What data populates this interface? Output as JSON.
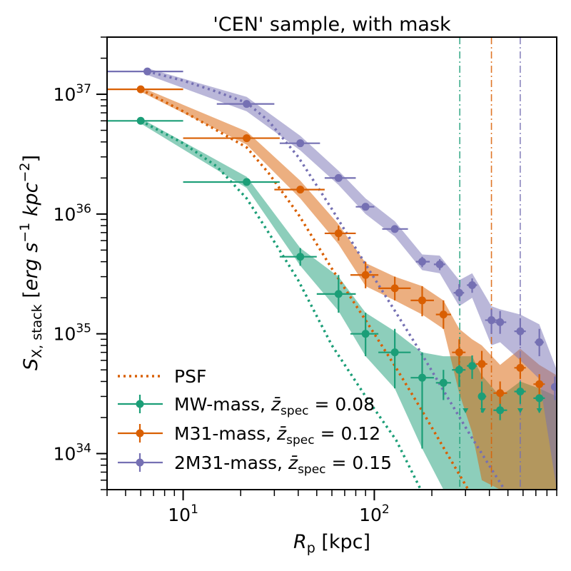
{
  "chart_data": {
    "type": "scatter",
    "title": "'CEN' sample, with mask",
    "xlabel": {
      "symbol": "R",
      "sub": "p",
      "unit": " [kpc]"
    },
    "ylabel": {
      "symbol": "S",
      "sub": "X, stack",
      "unit_open": " [",
      "unit": "erg s",
      "exp1": "−1",
      "unit2": " kpc",
      "exp2": "−2",
      "unit_close": "]"
    },
    "xscale": "log",
    "yscale": "log",
    "xlim": [
      4,
      900
    ],
    "ylim": [
      5e+33,
      3e+37
    ],
    "x_ticks": [
      {
        "value": 10,
        "base": "10",
        "exp": "1"
      },
      {
        "value": 100,
        "base": "10",
        "exp": "2"
      }
    ],
    "y_ticks": [
      {
        "value": 1e+34,
        "base": "10",
        "exp": "34"
      },
      {
        "value": 1e+35,
        "base": "10",
        "exp": "35"
      },
      {
        "value": 1e+36,
        "base": "10",
        "exp": "36"
      },
      {
        "value": 1e+37,
        "base": "10",
        "exp": "37"
      }
    ],
    "legend_position": "lower-left",
    "psf_label": "PSF",
    "series": [
      {
        "name": "MW-mass",
        "zlabel": "0.08",
        "color": "#1b9e77",
        "vline_x": 280,
        "points": [
          {
            "x": 6.0,
            "y": 6e+36,
            "xlo": 4.0,
            "xhi": 10.0
          },
          {
            "x": 21.5,
            "y": 1.85e+36,
            "xlo": 10.0,
            "xhi": 32.0
          },
          {
            "x": 41.0,
            "y": 4.4e+35,
            "xlo": 32.0,
            "xhi": 50.0,
            "ylo": 3.7e+35,
            "yhi": 5.2e+35
          },
          {
            "x": 65.0,
            "y": 2.15e+35,
            "xlo": 50.0,
            "xhi": 80.0,
            "ylo": 1.5e+35,
            "yhi": 3.1e+35
          },
          {
            "x": 90.0,
            "y": 1e+35,
            "xlo": 75.0,
            "xhi": 105.0,
            "ylo": 6.5e+34,
            "yhi": 1.5e+35
          },
          {
            "x": 128.0,
            "y": 7e+34,
            "xlo": 105.0,
            "xhi": 155.0,
            "ylo": 3.5e+34,
            "yhi": 1.1e+35
          },
          {
            "x": 178.0,
            "y": 4.3e+34,
            "xlo": 155.0,
            "xhi": 205.0,
            "ylo": 1.1e+34,
            "yhi": 7e+34
          },
          {
            "x": 230.0,
            "y": 3.9e+34,
            "xlo": 210.0,
            "xhi": 252.0,
            "ylo": 2.8e+34,
            "yhi": 5e+34
          },
          {
            "x": 278.0,
            "y": 5e+34,
            "xlo": 255.0,
            "xhi": 300.0,
            "ylo": 3.6e+34,
            "yhi": 6.5e+34
          },
          {
            "x": 325.0,
            "y": 5.4e+34,
            "xlo": 305.0,
            "xhi": 345.0,
            "ylo": 4.2e+34,
            "yhi": 6.6e+34
          },
          {
            "x": 365.0,
            "y": 3e+34,
            "xlo": 350.0,
            "xhi": 385.0,
            "ylo": 2.2e+34,
            "yhi": 4e+34
          },
          {
            "x": 455.0,
            "y": 2.3e+34,
            "xlo": 420.0,
            "xhi": 495.0,
            "ylo": 1.9e+34,
            "yhi": 2.8e+34
          },
          {
            "x": 580.0,
            "y": 3.3e+34,
            "xlo": 540.0,
            "xhi": 620.0,
            "ylo": 2.6e+34,
            "yhi": 4e+34
          },
          {
            "x": 730.0,
            "y": 2.9e+34,
            "xlo": 680.0,
            "xhi": 780.0,
            "ylo": 2.2e+34,
            "yhi": 3.6e+34
          }
        ],
        "band": [
          {
            "x": 6.0,
            "lo": 5.7e+36,
            "hi": 6.3e+36
          },
          {
            "x": 21.5,
            "lo": 1.65e+36,
            "hi": 2.05e+36
          },
          {
            "x": 41.0,
            "lo": 3.7e+35,
            "hi": 5.2e+35
          },
          {
            "x": 65.0,
            "lo": 1.55e+35,
            "hi": 3e+35
          },
          {
            "x": 90.0,
            "lo": 6.5e+34,
            "hi": 1.5e+35
          },
          {
            "x": 128.0,
            "lo": 3.5e+34,
            "hi": 1.05e+35
          },
          {
            "x": 178.0,
            "lo": 1.1e+34,
            "hi": 7e+34
          },
          {
            "x": 230.0,
            "lo": 5e+33,
            "hi": 6.5e+34
          },
          {
            "x": 278.0,
            "lo": 5e+33,
            "hi": 6.5e+34
          },
          {
            "x": 325.0,
            "lo": 5e+33,
            "hi": 6.5e+34
          },
          {
            "x": 365.0,
            "lo": 5e+33,
            "hi": 4.5e+34
          },
          {
            "x": 455.0,
            "lo": 5e+33,
            "hi": 3e+34
          },
          {
            "x": 580.0,
            "lo": 5e+33,
            "hi": 4e+34
          },
          {
            "x": 730.0,
            "lo": 5e+33,
            "hi": 3.5e+34
          },
          {
            "x": 900.0,
            "lo": 5e+33,
            "hi": 3e+34
          }
        ],
        "upper_limits": [
          300,
          370,
          455,
          580,
          730
        ],
        "psf": [
          {
            "x": 6.0,
            "y": 6e+36
          },
          {
            "x": 10.0,
            "y": 3.9e+36
          },
          {
            "x": 15.0,
            "y": 2.5e+36
          },
          {
            "x": 21.5,
            "y": 1.35e+36
          },
          {
            "x": 28.0,
            "y": 7e+35
          },
          {
            "x": 40.0,
            "y": 2.8e+35
          },
          {
            "x": 60.0,
            "y": 8e+34
          },
          {
            "x": 90.0,
            "y": 3e+34
          },
          {
            "x": 130.0,
            "y": 1.3e+34
          },
          {
            "x": 175.0,
            "y": 5e+33
          }
        ]
      },
      {
        "name": "M31-mass",
        "zlabel": "0.12",
        "color": "#d95f02",
        "vline_x": 410,
        "points": [
          {
            "x": 6.0,
            "y": 1.1e+37,
            "xlo": 4.0,
            "xhi": 10.0
          },
          {
            "x": 21.5,
            "y": 4.3e+36,
            "xlo": 10.0,
            "xhi": 32.0
          },
          {
            "x": 41.0,
            "y": 1.6e+36,
            "xlo": 30.0,
            "xhi": 55.0
          },
          {
            "x": 65.0,
            "y": 6.9e+35,
            "xlo": 55.0,
            "xhi": 80.0,
            "ylo": 6e+35,
            "yhi": 8e+35
          },
          {
            "x": 90.0,
            "y": 3.1e+35,
            "xlo": 75.0,
            "xhi": 105.0,
            "ylo": 2.4e+35,
            "yhi": 4e+35
          },
          {
            "x": 128.0,
            "y": 2.4e+35,
            "xlo": 105.0,
            "xhi": 155.0,
            "ylo": 1.9e+35,
            "yhi": 3e+35
          },
          {
            "x": 178.0,
            "y": 1.9e+35,
            "xlo": 155.0,
            "xhi": 205.0,
            "ylo": 1.4e+35,
            "yhi": 2.5e+35
          },
          {
            "x": 230.0,
            "y": 1.45e+35,
            "xlo": 210.0,
            "xhi": 252.0,
            "ylo": 1.1e+35,
            "yhi": 1.9e+35
          },
          {
            "x": 278.0,
            "y": 7e+34,
            "xlo": 255.0,
            "xhi": 300.0,
            "ylo": 5.5e+34,
            "yhi": 9e+34
          },
          {
            "x": 365.0,
            "y": 5.6e+34,
            "xlo": 340.0,
            "xhi": 390.0,
            "ylo": 4.2e+34,
            "yhi": 7.2e+34
          },
          {
            "x": 455.0,
            "y": 3.2e+34,
            "xlo": 420.0,
            "xhi": 495.0,
            "ylo": 2.6e+34,
            "yhi": 4e+34
          },
          {
            "x": 580.0,
            "y": 5.2e+34,
            "xlo": 540.0,
            "xhi": 620.0,
            "ylo": 4.2e+34,
            "yhi": 6.3e+34
          },
          {
            "x": 730.0,
            "y": 3.8e+34,
            "xlo": 680.0,
            "xhi": 780.0,
            "ylo": 3e+34,
            "yhi": 4.6e+34
          }
        ],
        "band": [
          {
            "x": 6.0,
            "lo": 1.05e+37,
            "hi": 1.15e+37
          },
          {
            "x": 21.5,
            "lo": 3.8e+36,
            "hi": 4.9e+36
          },
          {
            "x": 41.0,
            "lo": 1.35e+36,
            "hi": 1.9e+36
          },
          {
            "x": 65.0,
            "lo": 5.6e+35,
            "hi": 8.2e+35
          },
          {
            "x": 90.0,
            "lo": 2.5e+35,
            "hi": 3.9e+35
          },
          {
            "x": 128.0,
            "lo": 1.9e+35,
            "hi": 3e+35
          },
          {
            "x": 178.0,
            "lo": 1.45e+35,
            "hi": 2.5e+35
          },
          {
            "x": 230.0,
            "lo": 1.1e+35,
            "hi": 1.9e+35
          },
          {
            "x": 278.0,
            "lo": 3.2e+34,
            "hi": 1.1e+35
          },
          {
            "x": 325.0,
            "lo": 1.5e+34,
            "hi": 9e+34
          },
          {
            "x": 365.0,
            "lo": 6e+33,
            "hi": 8e+34
          },
          {
            "x": 455.0,
            "lo": 5e+33,
            "hi": 5.5e+34
          },
          {
            "x": 580.0,
            "lo": 5e+33,
            "hi": 7.5e+34
          },
          {
            "x": 730.0,
            "lo": 5e+33,
            "hi": 5.5e+34
          },
          {
            "x": 900.0,
            "lo": 5e+33,
            "hi": 4.5e+34
          }
        ],
        "upper_limits": [],
        "psf": [
          {
            "x": 6.0,
            "y": 1.1e+37
          },
          {
            "x": 10.0,
            "y": 7.2e+36
          },
          {
            "x": 15.0,
            "y": 5e+36
          },
          {
            "x": 21.5,
            "y": 3.6e+36
          },
          {
            "x": 28.0,
            "y": 2.2e+36
          },
          {
            "x": 40.0,
            "y": 1e+36
          },
          {
            "x": 60.0,
            "y": 3.5e+35
          },
          {
            "x": 90.0,
            "y": 1.3e+35
          },
          {
            "x": 130.0,
            "y": 5.2e+34
          },
          {
            "x": 180.0,
            "y": 2.2e+34
          },
          {
            "x": 240.0,
            "y": 1e+34
          },
          {
            "x": 310.0,
            "y": 5e+33
          }
        ]
      },
      {
        "name": "2M31-mass",
        "zlabel": "0.15",
        "color": "#7570b3",
        "vline_x": 580,
        "points": [
          {
            "x": 6.5,
            "y": 1.55e+37,
            "xlo": 4.0,
            "xhi": 10.0
          },
          {
            "x": 21.5,
            "y": 8.3e+36,
            "xlo": 15.0,
            "xhi": 30.0
          },
          {
            "x": 41.0,
            "y": 3.9e+36,
            "xlo": 32.0,
            "xhi": 52.0
          },
          {
            "x": 65.0,
            "y": 2e+36,
            "xlo": 55.0,
            "xhi": 80.0
          },
          {
            "x": 90.0,
            "y": 1.15e+36,
            "xlo": 80.0,
            "xhi": 100.0
          },
          {
            "x": 128.0,
            "y": 7.5e+35,
            "xlo": 110.0,
            "xhi": 150.0
          },
          {
            "x": 178.0,
            "y": 4e+35,
            "xlo": 165.0,
            "xhi": 195.0,
            "ylo": 3.6e+35,
            "yhi": 4.4e+35
          },
          {
            "x": 220.0,
            "y": 3.8e+35,
            "xlo": 205.0,
            "xhi": 235.0,
            "ylo": 3.4e+35,
            "yhi": 4.2e+35
          },
          {
            "x": 278.0,
            "y": 2.2e+35,
            "xlo": 260.0,
            "xhi": 295.0,
            "ylo": 1.9e+35,
            "yhi": 2.6e+35
          },
          {
            "x": 325.0,
            "y": 2.55e+35,
            "xlo": 305.0,
            "xhi": 345.0,
            "ylo": 2.2e+35,
            "yhi": 2.9e+35
          },
          {
            "x": 410.0,
            "y": 1.3e+35,
            "xlo": 380.0,
            "xhi": 440.0,
            "ylo": 1e+35,
            "yhi": 1.6e+35
          },
          {
            "x": 455.0,
            "y": 1.25e+35,
            "xlo": 425.0,
            "xhi": 490.0,
            "ylo": 1e+35,
            "yhi": 1.55e+35
          },
          {
            "x": 580.0,
            "y": 1.05e+35,
            "xlo": 540.0,
            "xhi": 620.0,
            "ylo": 8e+34,
            "yhi": 1.35e+35
          },
          {
            "x": 730.0,
            "y": 8.5e+34,
            "xlo": 690.0,
            "xhi": 770.0,
            "ylo": 6.5e+34,
            "yhi": 1.1e+35
          },
          {
            "x": 880.0,
            "y": 3.6e+34,
            "xlo": 860.0,
            "xhi": 900.0,
            "ylo": 2.8e+34,
            "yhi": 4.4e+34
          }
        ],
        "band": [
          {
            "x": 6.5,
            "lo": 1.45e+37,
            "hi": 1.65e+37
          },
          {
            "x": 21.5,
            "lo": 7.2e+36,
            "hi": 9.5e+36
          },
          {
            "x": 41.0,
            "lo": 3.4e+36,
            "hi": 4.5e+36
          },
          {
            "x": 65.0,
            "lo": 1.75e+36,
            "hi": 2.3e+36
          },
          {
            "x": 90.0,
            "lo": 1e+36,
            "hi": 1.35e+36
          },
          {
            "x": 128.0,
            "lo": 6.5e+35,
            "hi": 8.7e+35
          },
          {
            "x": 178.0,
            "lo": 3.4e+35,
            "hi": 4.6e+35
          },
          {
            "x": 220.0,
            "lo": 3.2e+35,
            "hi": 4.5e+35
          },
          {
            "x": 278.0,
            "lo": 1.7e+35,
            "hi": 2.8e+35
          },
          {
            "x": 325.0,
            "lo": 2e+35,
            "hi": 3.2e+35
          },
          {
            "x": 410.0,
            "lo": 8e+34,
            "hi": 1.7e+35
          },
          {
            "x": 455.0,
            "lo": 8.5e+34,
            "hi": 1.6e+35
          },
          {
            "x": 580.0,
            "lo": 6e+34,
            "hi": 1.45e+35
          },
          {
            "x": 730.0,
            "lo": 4.2e+34,
            "hi": 1.2e+35
          },
          {
            "x": 900.0,
            "lo": 5e+33,
            "hi": 5e+34
          }
        ],
        "upper_limits": [],
        "psf": [
          {
            "x": 6.5,
            "y": 1.55e+37
          },
          {
            "x": 10.0,
            "y": 1.3e+37
          },
          {
            "x": 15.0,
            "y": 1.05e+37
          },
          {
            "x": 21.5,
            "y": 8.5e+36
          },
          {
            "x": 28.0,
            "y": 6e+36
          },
          {
            "x": 40.0,
            "y": 3e+36
          },
          {
            "x": 60.0,
            "y": 1.1e+36
          },
          {
            "x": 90.0,
            "y": 3.8e+35
          },
          {
            "x": 130.0,
            "y": 1.5e+35
          },
          {
            "x": 180.0,
            "y": 6.5e+34
          },
          {
            "x": 240.0,
            "y": 3e+34
          },
          {
            "x": 320.0,
            "y": 1.4e+34
          },
          {
            "x": 420.0,
            "y": 7e+33
          },
          {
            "x": 480.0,
            "y": 5e+33
          }
        ]
      }
    ]
  }
}
